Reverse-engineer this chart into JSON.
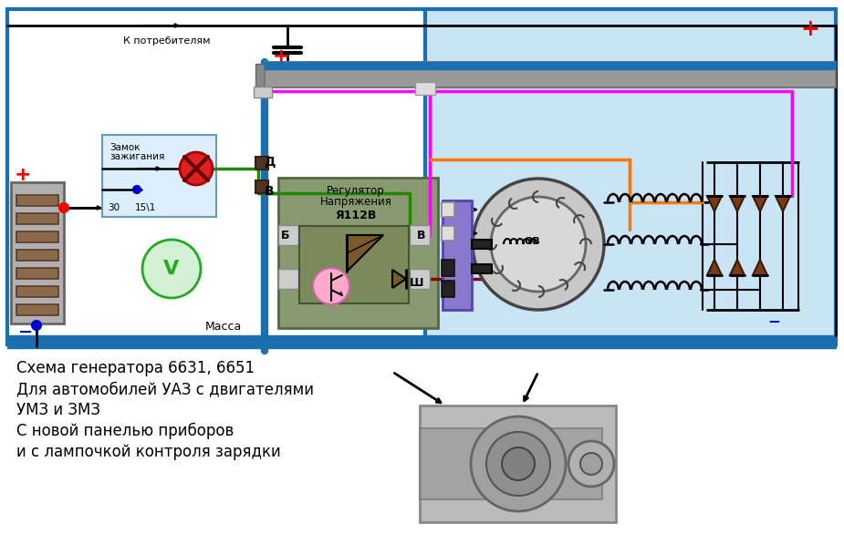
{
  "bg_color": "#ffffff",
  "light_blue_bg": "#c8e4f5",
  "blue_wire": "#1a6faf",
  "text_lines": [
    "Схема генератора 6631, 6651",
    "Для автомобилей УАЗ с двигателями",
    "УМЗ и ЗМЗ",
    "С новой панелью приборов",
    "и с лампочкой контроля зарядки"
  ]
}
